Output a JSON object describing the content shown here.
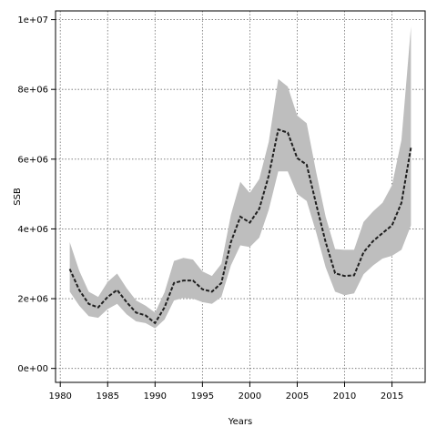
{
  "chart_data": {
    "type": "line",
    "xlabel": "Years",
    "ylabel": "SSB",
    "xlim": [
      1979.5,
      2018.5
    ],
    "ylim": [
      -400000,
      10250000
    ],
    "grid": true,
    "x_ticks": [
      1980,
      1985,
      1990,
      1995,
      2000,
      2005,
      2010,
      2015
    ],
    "x_tick_labels": [
      "1980",
      "1985",
      "1990",
      "1995",
      "2000",
      "2005",
      "2010",
      "2015"
    ],
    "y_ticks": [
      0,
      2000000,
      4000000,
      6000000,
      8000000,
      10000000
    ],
    "y_tick_labels": [
      "0e+00",
      "2e+06",
      "4e+06",
      "6e+06",
      "8e+06",
      "1e+07"
    ],
    "x": [
      1981,
      1982,
      1983,
      1984,
      1985,
      1986,
      1987,
      1988,
      1989,
      1990,
      1991,
      1992,
      1993,
      1994,
      1995,
      1996,
      1997,
      1998,
      1999,
      2000,
      2001,
      2002,
      2003,
      2004,
      2005,
      2006,
      2007,
      2008,
      2009,
      2010,
      2011,
      2012,
      2013,
      2014,
      2015,
      2016,
      2017
    ],
    "series": [
      {
        "values": [
          2850000,
          2250000,
          1850000,
          1750000,
          2050000,
          2250000,
          1900000,
          1600000,
          1520000,
          1300000,
          1750000,
          2450000,
          2520000,
          2520000,
          2270000,
          2200000,
          2450000,
          3620000,
          4350000,
          4180000,
          4580000,
          5530000,
          6850000,
          6760000,
          6030000,
          5840000,
          4710000,
          3620000,
          2730000,
          2650000,
          2670000,
          3330000,
          3650000,
          3880000,
          4100000,
          4750000,
          6330000
        ],
        "lower": [
          2200000,
          1800000,
          1500000,
          1450000,
          1700000,
          1850000,
          1550000,
          1350000,
          1300000,
          1150000,
          1400000,
          1950000,
          2020000,
          2000000,
          1900000,
          1850000,
          2050000,
          2950000,
          3530000,
          3480000,
          3750000,
          4550000,
          5650000,
          5650000,
          5000000,
          4800000,
          3900000,
          2900000,
          2200000,
          2100000,
          2150000,
          2700000,
          2950000,
          3150000,
          3230000,
          3400000,
          4100000
        ],
        "upper": [
          3620000,
          2800000,
          2200000,
          2050000,
          2480000,
          2720000,
          2300000,
          1950000,
          1800000,
          1600000,
          2180000,
          3080000,
          3170000,
          3120000,
          2780000,
          2650000,
          3000000,
          4400000,
          5350000,
          5030000,
          5430000,
          6500000,
          8300000,
          8080000,
          7250000,
          7030000,
          5630000,
          4350000,
          3420000,
          3400000,
          3400000,
          4200000,
          4500000,
          4750000,
          5250000,
          6550000,
          9800000
        ]
      }
    ]
  },
  "colors": {
    "band": "#bebebe",
    "line": "#1f1f1f",
    "grid": "#6e6e6e",
    "axis": "#000000"
  }
}
